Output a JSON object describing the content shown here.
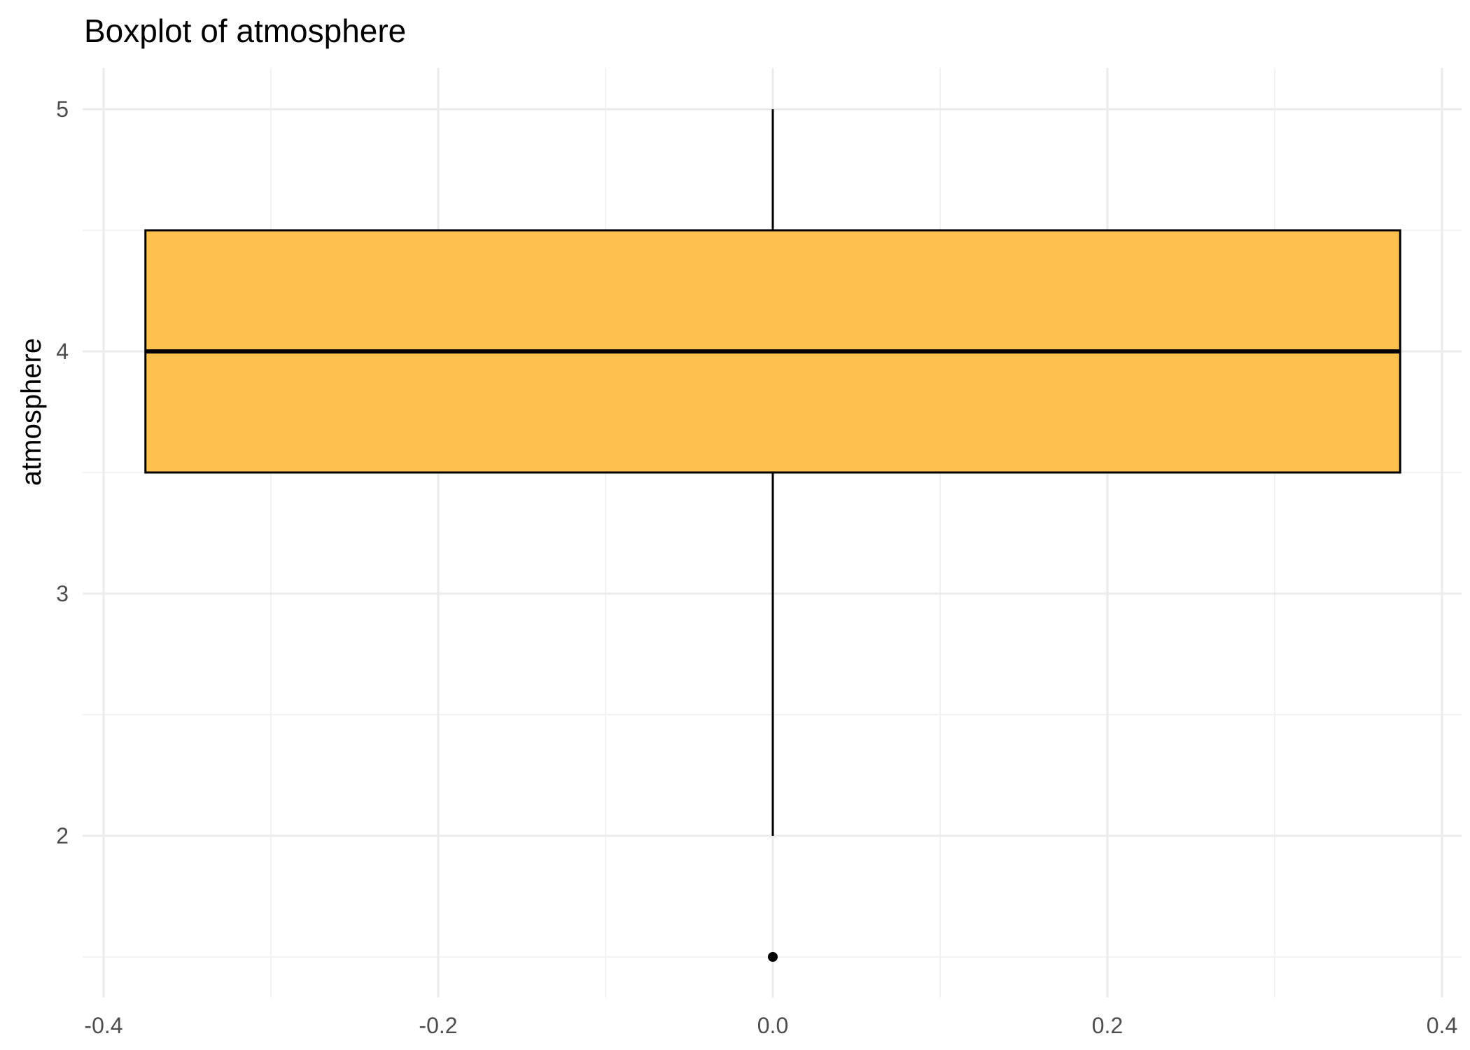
{
  "chart_data": {
    "type": "boxplot",
    "title": "Boxplot of atmosphere",
    "xlabel": "",
    "ylabel": "atmosphere",
    "xlim": [
      -0.4,
      0.4
    ],
    "ylim": [
      1.5,
      5
    ],
    "x_ticks": [
      -0.4,
      -0.2,
      0.0,
      0.2,
      0.4
    ],
    "x_tick_labels": [
      "-0.4",
      "-0.2",
      "0.0",
      "0.2",
      "0.4"
    ],
    "y_ticks": [
      2,
      3,
      4,
      5
    ],
    "y_tick_labels": [
      "2",
      "3",
      "4",
      "5"
    ],
    "grid": true,
    "box": {
      "center_x": 0.0,
      "x_left": -0.375,
      "x_right": 0.375,
      "whisker_low": 2,
      "q1": 3.5,
      "median": 4,
      "q3": 4.5,
      "whisker_high": 5,
      "outliers": [
        1.5
      ]
    },
    "colors": {
      "box_fill": "#FEC04F",
      "box_stroke": "#000000",
      "grid_major": "#EBEBEB",
      "grid_minor": "#F2F2F2",
      "background": "#FFFFFF"
    }
  }
}
